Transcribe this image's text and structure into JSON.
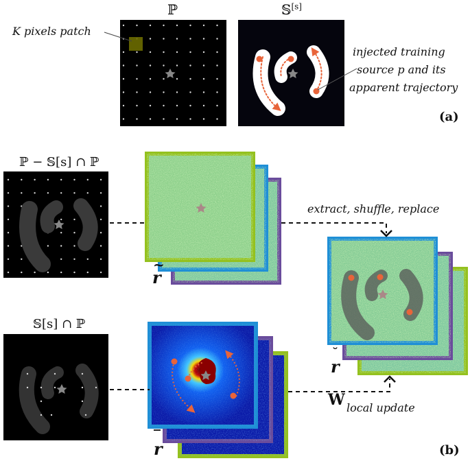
{
  "panel_a": {
    "label": "(a)",
    "pixel_grid_title": "ℙ",
    "source_map_title": "𝕊",
    "source_map_superscript": "[s]",
    "patch_annotation": "K pixels patch",
    "source_annotation": [
      "injected training",
      "source p and its",
      "apparent trajectory"
    ]
  },
  "panel_b": {
    "label": "(b)",
    "masked_grid_title": "ℙ − 𝕊[s] ∩ ℙ",
    "intersection_title": "𝕊[s] ∩ ℙ",
    "residual_stack_symbol": "r",
    "shuffled_stack_symbol": "r",
    "mean_stack_symbol": "r",
    "process_annotation": "extract, shuffle, replace",
    "update_symbol": "W",
    "update_annotation": "local update"
  },
  "colors": {
    "frame_green": "#94c11f",
    "frame_blue": "#1f8fd6",
    "frame_purple": "#6a4c9c",
    "source_orange": "#e8643a",
    "patch_olive": "#6b6b00"
  }
}
